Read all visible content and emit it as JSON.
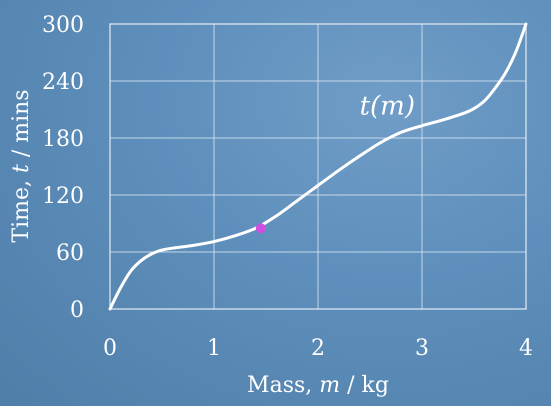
{
  "chart_data": {
    "type": "line",
    "xlabel_prefix": "Mass, ",
    "xlabel_var": "m",
    "xlabel_suffix": " / kg",
    "ylabel_prefix": "Time, ",
    "ylabel_var": "t",
    "ylabel_suffix": " / mins",
    "xlim": [
      0,
      4
    ],
    "ylim": [
      0,
      300
    ],
    "xticks": [
      0,
      1,
      2,
      3,
      4
    ],
    "yticks": [
      0,
      60,
      120,
      180,
      240,
      300
    ],
    "grid": true,
    "series": [
      {
        "name": "t(m)",
        "color": "#ffffff",
        "x": [
          0,
          0.1,
          0.2,
          0.3,
          0.4,
          0.5,
          0.6,
          0.8,
          1.0,
          1.2,
          1.4,
          1.6,
          1.8,
          2.0,
          2.2,
          2.4,
          2.6,
          2.8,
          3.0,
          3.2,
          3.4,
          3.5,
          3.6,
          3.7,
          3.8,
          3.9,
          4.0
        ],
        "y": [
          0,
          22,
          40,
          51,
          58,
          62,
          64,
          67,
          71,
          77,
          85,
          98,
          114,
          130,
          146,
          161,
          175,
          186,
          193,
          199,
          206,
          211,
          219,
          232,
          248,
          270,
          300
        ]
      }
    ],
    "annotations": [
      {
        "text": "t(m)",
        "x": 2.4,
        "y": 205
      }
    ],
    "highlight_points": [
      {
        "x": 1.45,
        "y": 85,
        "color": "#d14fe0"
      }
    ]
  }
}
